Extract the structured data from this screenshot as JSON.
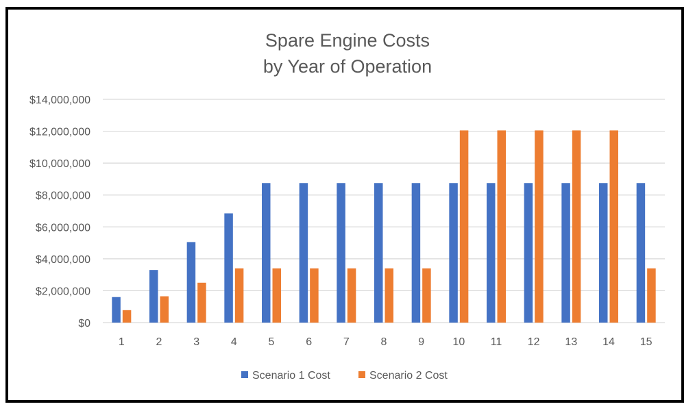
{
  "chart_data": {
    "type": "bar",
    "title": [
      "Spare Engine Costs",
      "by Year of Operation"
    ],
    "categories": [
      "1",
      "2",
      "3",
      "4",
      "5",
      "6",
      "7",
      "8",
      "9",
      "10",
      "11",
      "12",
      "13",
      "14",
      "15"
    ],
    "series": [
      {
        "name": "Scenario 1 Cost",
        "color": "#4472C4",
        "values": [
          1600000,
          3300000,
          5050000,
          6850000,
          8750000,
          8750000,
          8750000,
          8750000,
          8750000,
          8750000,
          8750000,
          8750000,
          8750000,
          8750000,
          8750000
        ]
      },
      {
        "name": "Scenario 2 Cost",
        "color": "#ED7D31",
        "values": [
          780000,
          1650000,
          2500000,
          3400000,
          3400000,
          3400000,
          3400000,
          3400000,
          3400000,
          12050000,
          12050000,
          12050000,
          12050000,
          12050000,
          3400000
        ]
      }
    ],
    "ylim": [
      0,
      14000000
    ],
    "yticks": [
      0,
      2000000,
      4000000,
      6000000,
      8000000,
      10000000,
      12000000,
      14000000
    ],
    "ytick_labels": [
      "$0",
      "$2,000,000",
      "$4,000,000",
      "$6,000,000",
      "$8,000,000",
      "$10,000,000",
      "$12,000,000",
      "$14,000,000"
    ],
    "grid": true,
    "legend_position": "bottom-center",
    "gridline_color": "#D9D9D9"
  }
}
